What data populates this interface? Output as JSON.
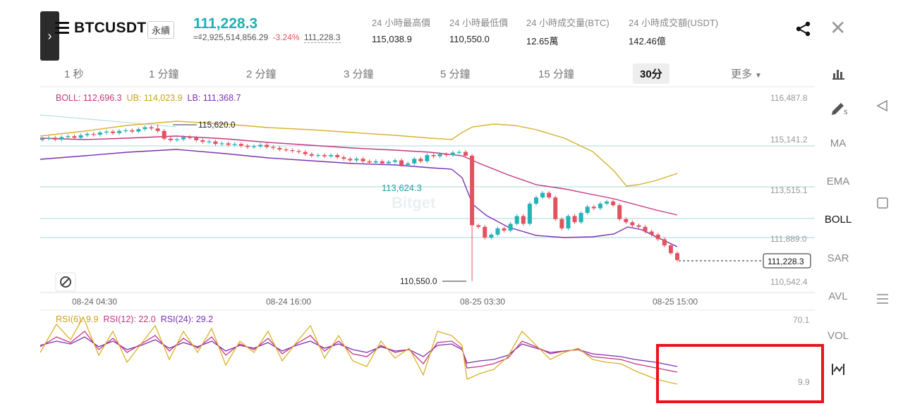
{
  "header": {
    "back_glyph": "›",
    "menu_icon": "hamburger-icon",
    "symbol": "BTCUSDT",
    "contract_type": "永續",
    "last_price": "111,228.3",
    "fiat_value": "≈₫2,925,514,856.29",
    "change_pct": "-3.24%",
    "mark_price": "111,228.3",
    "stats": [
      {
        "label": "24 小時最高價",
        "value": "115,038.9"
      },
      {
        "label": "24 小時最低價",
        "value": "110,550.0"
      },
      {
        "label": "24 小時成交量(BTC)",
        "value": "12.65萬"
      },
      {
        "label": "24 小時成交額(USDT)",
        "value": "142.46億"
      }
    ],
    "share_icon": "share-icon",
    "close_glyph": "✕"
  },
  "timeframes": [
    "1 秒",
    "1 分鐘",
    "2 分鐘",
    "3 分鐘",
    "5 分鐘",
    "15 分鐘",
    "30分",
    "更多"
  ],
  "active_timeframe": "30分",
  "main_chart": {
    "legend": {
      "boll": "BOLL: 112,696.3",
      "ub": "UB: 114,023.9",
      "lb": "LB: 111,368.7"
    },
    "price_axis": [
      "116,487.8",
      "115,141.2",
      "113,515.1",
      "111,889.0",
      "110,542.4"
    ],
    "current_price_tag": "111,228.3",
    "high_label": "115,620.0",
    "low_label": "110,550.0",
    "level_label": "113,624.3",
    "watermark": "Bitget",
    "time_axis": [
      "08-24 04:30",
      "08-24 16:00",
      "08-25 03:30",
      "08-25 15:00"
    ],
    "colors": {
      "up": "#26b3b8",
      "down": "#e2525f",
      "boll": "#c2357f",
      "ub": "#d9b12b",
      "lb": "#7b2fb5"
    }
  },
  "rsi_chart": {
    "legend": {
      "rsi6": "RSI(6): 9.9",
      "rsi12": "RSI(12): 22.0",
      "rsi24": "RSI(24): 29.2"
    },
    "axis_top": "70.1",
    "axis_bottom": "9.9",
    "colors": {
      "rsi6": "#d9b12b",
      "rsi12": "#c2357f",
      "rsi24": "#7b2fb5",
      "highlight": "#e8141c"
    }
  },
  "right_toolbar": [
    {
      "label": "",
      "icon": "bar-chart-icon"
    },
    {
      "label": "",
      "icon": "draw-pen-icon"
    },
    {
      "label": "MA"
    },
    {
      "label": "EMA"
    },
    {
      "label": "BOLL",
      "active": true
    },
    {
      "label": "SAR"
    },
    {
      "label": "AVL"
    },
    {
      "label": "VOL"
    },
    {
      "label": "",
      "icon": "indicator-icon"
    }
  ],
  "chart_data": {
    "type": "candlestick",
    "title": "BTCUSDT 30分",
    "x_ticks": [
      "08-24 04:30",
      "08-24 16:00",
      "08-25 03:30",
      "08-25 15:00"
    ],
    "y_ticks": [
      116487.8,
      115141.2,
      113515.1,
      111889.0,
      110542.4
    ],
    "last_price": 111228.3,
    "high": 115620.0,
    "low": 110550.0,
    "indicators": {
      "BOLL": 112696.3,
      "UB": 114023.9,
      "LB": 111368.7,
      "RSI6": 9.9,
      "RSI12": 22.0,
      "RSI24": 29.2
    },
    "approx_close_series": [
      115150,
      115180,
      115120,
      115200,
      115230,
      115180,
      115260,
      115300,
      115280,
      115350,
      115380,
      115330,
      115400,
      115420,
      115380,
      115460,
      115520,
      115480,
      115400,
      115150,
      115100,
      115130,
      115200,
      115180,
      115100,
      115050,
      115060,
      114980,
      115000,
      114950,
      114980,
      114920,
      114880,
      114900,
      114950,
      114880,
      114850,
      114800,
      114780,
      114750,
      114720,
      114650,
      114600,
      114620,
      114580,
      114620,
      114550,
      114500,
      114450,
      114500,
      114420,
      114380,
      114420,
      114350,
      114400,
      114450,
      114300,
      114350,
      114500,
      114420,
      114620,
      114580,
      114650,
      114620,
      114700,
      114720,
      114600,
      112350,
      112300,
      111950,
      112050,
      112250,
      112180,
      112400,
      112650,
      112400,
      113050,
      113250,
      113400,
      113250,
      112550,
      112250,
      112650,
      112450,
      112750,
      112950,
      112900,
      113050,
      113120,
      113000,
      112550,
      112450,
      112350,
      112300,
      112150,
      112050,
      111900,
      111700,
      111450,
      111228.3
    ]
  }
}
